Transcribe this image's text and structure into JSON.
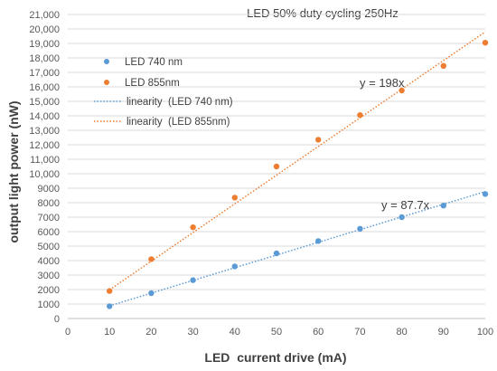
{
  "chart_data": {
    "type": "scatter",
    "title": "LED 50% duty cycling 250Hz",
    "xlabel": "LED  current drive (mA)",
    "ylabel": "output light power (nW)",
    "xlim": [
      0,
      100
    ],
    "ylim": [
      0,
      21000
    ],
    "x_ticks": [
      0,
      10,
      20,
      30,
      40,
      50,
      60,
      70,
      80,
      90,
      100
    ],
    "y_ticks": [
      0,
      1000,
      2000,
      3000,
      4000,
      5000,
      6000,
      7000,
      8000,
      9000,
      10000,
      11000,
      12000,
      13000,
      14000,
      15000,
      16000,
      17000,
      18000,
      19000,
      20000,
      21000
    ],
    "y_tick_labels": [
      "0",
      "1000",
      "2000",
      "3000",
      "4000",
      "5000",
      "6000",
      "7000",
      "8000",
      "9000",
      "10,000",
      "11,000",
      "12,000",
      "13,000",
      "14,000",
      "15,000",
      "16,000",
      "17,000",
      "18,000",
      "19,000",
      "20,000",
      "21,000"
    ],
    "grid": "horizontal",
    "legend_position": "top-left",
    "series": [
      {
        "name": "LED 740 nm",
        "color": "#5b9bd5",
        "x": [
          10,
          20,
          30,
          40,
          50,
          60,
          70,
          80,
          90,
          100
        ],
        "y": [
          850,
          1750,
          2650,
          3600,
          4500,
          5350,
          6200,
          7000,
          7800,
          8600
        ]
      },
      {
        "name": "LED 855nm",
        "color": "#ed7d31",
        "x": [
          10,
          20,
          30,
          40,
          50,
          60,
          70,
          80,
          90,
          100
        ],
        "y": [
          1900,
          4100,
          6300,
          8350,
          10500,
          12350,
          14050,
          15750,
          17450,
          19050
        ]
      }
    ],
    "trendlines": [
      {
        "name": "linearity  (LED 740 nm)",
        "color": "#5b9bd5",
        "slope": 87.7,
        "x_range": [
          10,
          100
        ],
        "label": "y = 87.7x"
      },
      {
        "name": "linearity  (LED 855nm)",
        "color": "#ed7d31",
        "slope": 198,
        "x_range": [
          10,
          100
        ],
        "label": "y = 198x"
      }
    ]
  }
}
